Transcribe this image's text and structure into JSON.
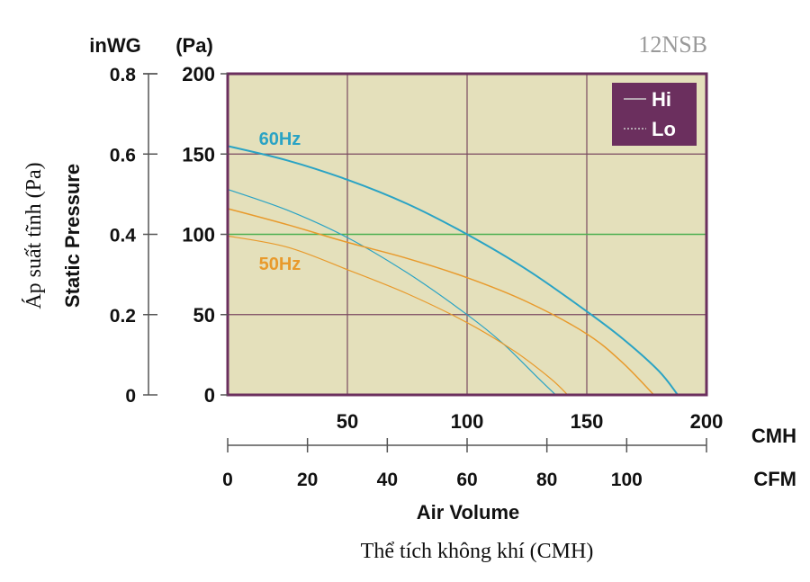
{
  "chart_data": {
    "type": "line",
    "model_label": "12NSB",
    "left_axis_unit": "inWG",
    "right_axis_unit": "(Pa)",
    "y_title_vi": "Áp suất tĩnh (Pa)",
    "y_title_en": "Static Pressure",
    "x_title_en": "Air Volume",
    "x_title_vi": "Thể tích không khí (CMH)",
    "cmh_unit": "CMH",
    "cfm_unit": "CFM",
    "ylim": [
      0,
      200
    ],
    "xlim": [
      0,
      200
    ],
    "y_ticks_pa": [
      0,
      50,
      100,
      150,
      200
    ],
    "y_ticks_inwg": [
      "0",
      "0.2",
      "0.4",
      "0.6",
      "0.8"
    ],
    "x_ticks_cmh": [
      50,
      100,
      150,
      200
    ],
    "x_ticks_cfm": [
      0,
      20,
      40,
      60,
      80,
      100
    ],
    "cfm_max": 120,
    "grid": true,
    "legend": {
      "position": "top-right",
      "items": [
        {
          "label": "Hi",
          "style": "solid"
        },
        {
          "label": "Lo",
          "style": "dotted"
        }
      ]
    },
    "annotations": [
      {
        "text": "60Hz",
        "color": "#2aa3c4",
        "x": 10,
        "y": 158
      },
      {
        "text": "50Hz",
        "color": "#e89a2c",
        "x": 10,
        "y": 80
      }
    ],
    "series": [
      {
        "group": "60Hz",
        "mode": "Hi",
        "color": "#2aa3c4",
        "width": 2,
        "x": [
          0,
          25,
          50,
          75,
          100,
          125,
          150,
          165,
          180,
          188
        ],
        "y": [
          155,
          146,
          134,
          119,
          100,
          78,
          52,
          35,
          15,
          0
        ]
      },
      {
        "group": "60Hz",
        "mode": "Lo",
        "color": "#2aa3c4",
        "width": 1.2,
        "x": [
          0,
          25,
          50,
          75,
          100,
          115,
          130,
          137
        ],
        "y": [
          128,
          115,
          98,
          76,
          50,
          32,
          10,
          0
        ]
      },
      {
        "group": "50Hz",
        "mode": "Hi",
        "color": "#e89a2c",
        "width": 1.5,
        "x": [
          0,
          25,
          50,
          75,
          100,
          125,
          150,
          165,
          178
        ],
        "y": [
          116,
          106,
          95,
          85,
          73,
          58,
          38,
          20,
          0
        ]
      },
      {
        "group": "50Hz",
        "mode": "Lo",
        "color": "#e89a2c",
        "width": 1.2,
        "x": [
          0,
          25,
          50,
          75,
          100,
          120,
          135,
          142
        ],
        "y": [
          99,
          92,
          78,
          63,
          45,
          27,
          10,
          0
        ]
      }
    ],
    "colors": {
      "plot_bg": "#e4e0bb",
      "plot_border": "#6b2f5e",
      "grid": "#7a4a60",
      "highlight_line": "#4caf50",
      "legend_bg": "#6b2f5e",
      "legend_text": "#ffffff",
      "axis": "#555555",
      "text": "#111111",
      "model_label": "#9a9a9a"
    }
  }
}
